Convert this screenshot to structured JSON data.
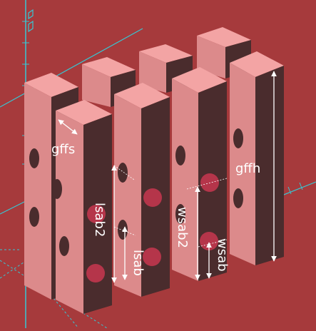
{
  "view": {
    "background": "#a63a3c",
    "axis_color": "#36c7d3",
    "top_face": "#f3a4a4",
    "front_face": "#dc8a8b",
    "side_face": "#4a2c2d",
    "hole_color": "#b5354a",
    "dimension_color": "#ffffff"
  },
  "labels": {
    "gffs": "gffs",
    "gffh": "gffh",
    "lsab2": "lsab2",
    "lsab": "lsab",
    "wsab2": "wsab2",
    "wsab": "wsab"
  }
}
